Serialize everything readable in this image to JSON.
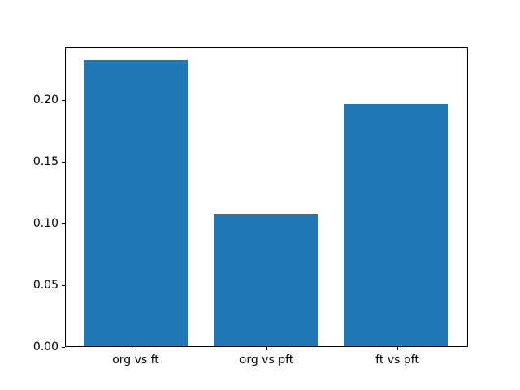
{
  "figure": {
    "background": "#ffffff"
  },
  "chart_data": {
    "type": "bar",
    "title": "",
    "xlabel": "",
    "ylabel": "",
    "categories": [
      "org vs ft",
      "org vs pft",
      "ft vs pft"
    ],
    "values": [
      0.233,
      0.108,
      0.197
    ],
    "bar_color": "#1f77b4",
    "bar_width": 0.8,
    "xlim": [
      -0.54,
      2.54
    ],
    "ylim": [
      0,
      0.2428
    ],
    "yticks": [
      0,
      0.05,
      0.1,
      0.15,
      0.2
    ],
    "ytick_labels": [
      "0.00",
      "0.05",
      "0.10",
      "0.15",
      "0.20"
    ],
    "grid": false,
    "legend": null
  }
}
